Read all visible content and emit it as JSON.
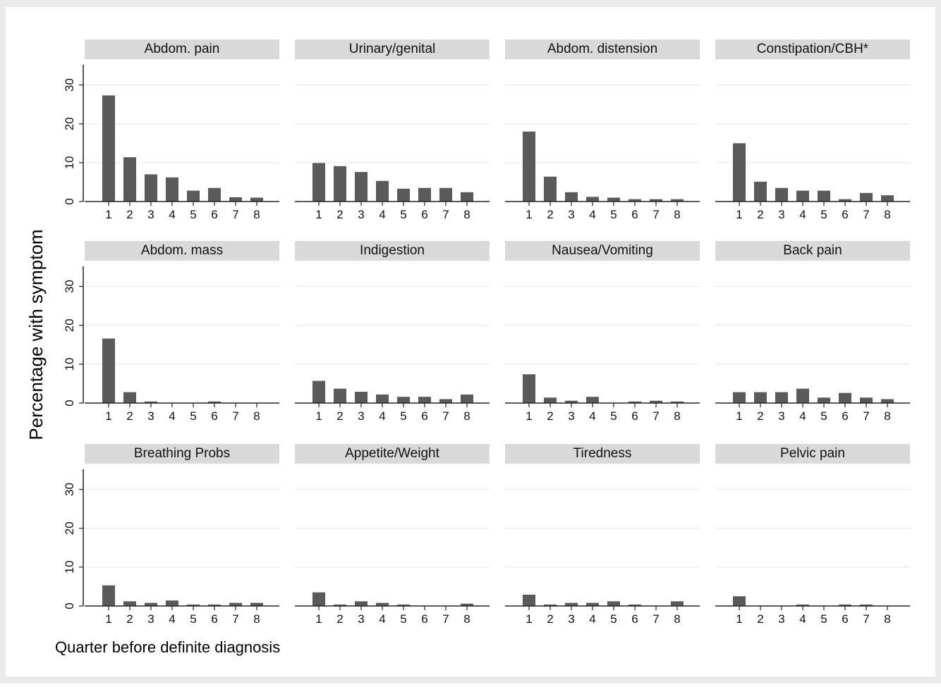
{
  "chart_data": {
    "type": "bar",
    "ylabel": "Percentage with symptom",
    "xlabel": "Quarter before definite diagnosis",
    "categories": [
      "1",
      "2",
      "3",
      "4",
      "5",
      "6",
      "7",
      "8"
    ],
    "y_ticks": [
      "0",
      "10",
      "20",
      "30"
    ],
    "ylim": [
      0,
      33
    ],
    "grid": true,
    "colors": {
      "bar": "#5a5a5a",
      "panel_header": "#d9d9d9",
      "background": "#eaeaea",
      "gridline": "#e6e6e6",
      "axis": "#222222"
    },
    "panels": [
      {
        "title": "Abdom. pain",
        "values": [
          27.3,
          11.4,
          7.0,
          6.2,
          2.8,
          3.5,
          1.1,
          1.0
        ]
      },
      {
        "title": "Urinary/genital",
        "values": [
          9.9,
          9.1,
          7.6,
          5.3,
          3.3,
          3.5,
          3.5,
          2.4
        ]
      },
      {
        "title": "Abdom. distension",
        "values": [
          18.0,
          6.4,
          2.4,
          1.2,
          1.0,
          0.6,
          0.6,
          0.6
        ]
      },
      {
        "title": "Constipation/CBH*",
        "values": [
          15.0,
          5.1,
          3.5,
          2.8,
          2.8,
          0.6,
          2.2,
          1.6
        ]
      },
      {
        "title": "Abdom. mass",
        "values": [
          16.6,
          2.8,
          0.4,
          0.0,
          0.0,
          0.4,
          0.0,
          0.0
        ]
      },
      {
        "title": "Indigestion",
        "values": [
          5.7,
          3.7,
          2.9,
          2.2,
          1.6,
          1.6,
          1.0,
          2.2
        ]
      },
      {
        "title": "Nausea/Vomiting",
        "values": [
          7.4,
          1.4,
          0.6,
          1.6,
          0.0,
          0.4,
          0.6,
          0.4
        ]
      },
      {
        "title": "Back pain",
        "values": [
          2.8,
          2.8,
          2.8,
          3.7,
          1.4,
          2.6,
          1.4,
          1.0
        ]
      },
      {
        "title": "Breathing Probs",
        "values": [
          5.3,
          1.2,
          0.8,
          1.4,
          0.2,
          0.2,
          0.8,
          0.8
        ]
      },
      {
        "title": "Appetite/Weight",
        "values": [
          3.5,
          0.2,
          1.2,
          0.8,
          0.2,
          0.0,
          0.0,
          0.6
        ]
      },
      {
        "title": "Tiredness",
        "values": [
          2.9,
          0.2,
          0.8,
          0.8,
          1.2,
          0.2,
          0.0,
          1.2
        ]
      },
      {
        "title": "Pelvic pain",
        "values": [
          2.5,
          0.0,
          0.0,
          0.2,
          0.0,
          0.2,
          0.2,
          0.0
        ]
      }
    ]
  }
}
